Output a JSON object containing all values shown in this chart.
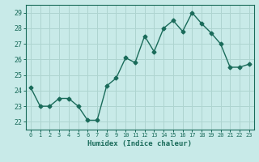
{
  "x": [
    0,
    1,
    2,
    3,
    4,
    5,
    6,
    7,
    8,
    9,
    10,
    11,
    12,
    13,
    14,
    15,
    16,
    17,
    18,
    19,
    20,
    21,
    22,
    23
  ],
  "y": [
    24.2,
    23.0,
    23.0,
    23.5,
    23.5,
    23.0,
    22.1,
    22.1,
    24.3,
    24.8,
    26.1,
    25.8,
    27.5,
    26.5,
    28.0,
    28.5,
    27.8,
    29.0,
    28.3,
    27.7,
    27.0,
    25.5,
    25.5,
    25.7
  ],
  "line_color": "#1a6b5a",
  "marker": "D",
  "marker_size": 2.5,
  "bg_color": "#c8eae8",
  "grid_color": "#aed4d0",
  "tick_color": "#1a6b5a",
  "label_color": "#1a6b5a",
  "xlabel": "Humidex (Indice chaleur)",
  "ylim": [
    21.5,
    29.5
  ],
  "yticks": [
    22,
    23,
    24,
    25,
    26,
    27,
    28,
    29
  ],
  "xticks": [
    0,
    1,
    2,
    3,
    4,
    5,
    6,
    7,
    8,
    9,
    10,
    11,
    12,
    13,
    14,
    15,
    16,
    17,
    18,
    19,
    20,
    21,
    22,
    23
  ],
  "font_family": "monospace",
  "xlabel_fontsize": 6.5,
  "xtick_fontsize": 5.0,
  "ytick_fontsize": 6.0
}
